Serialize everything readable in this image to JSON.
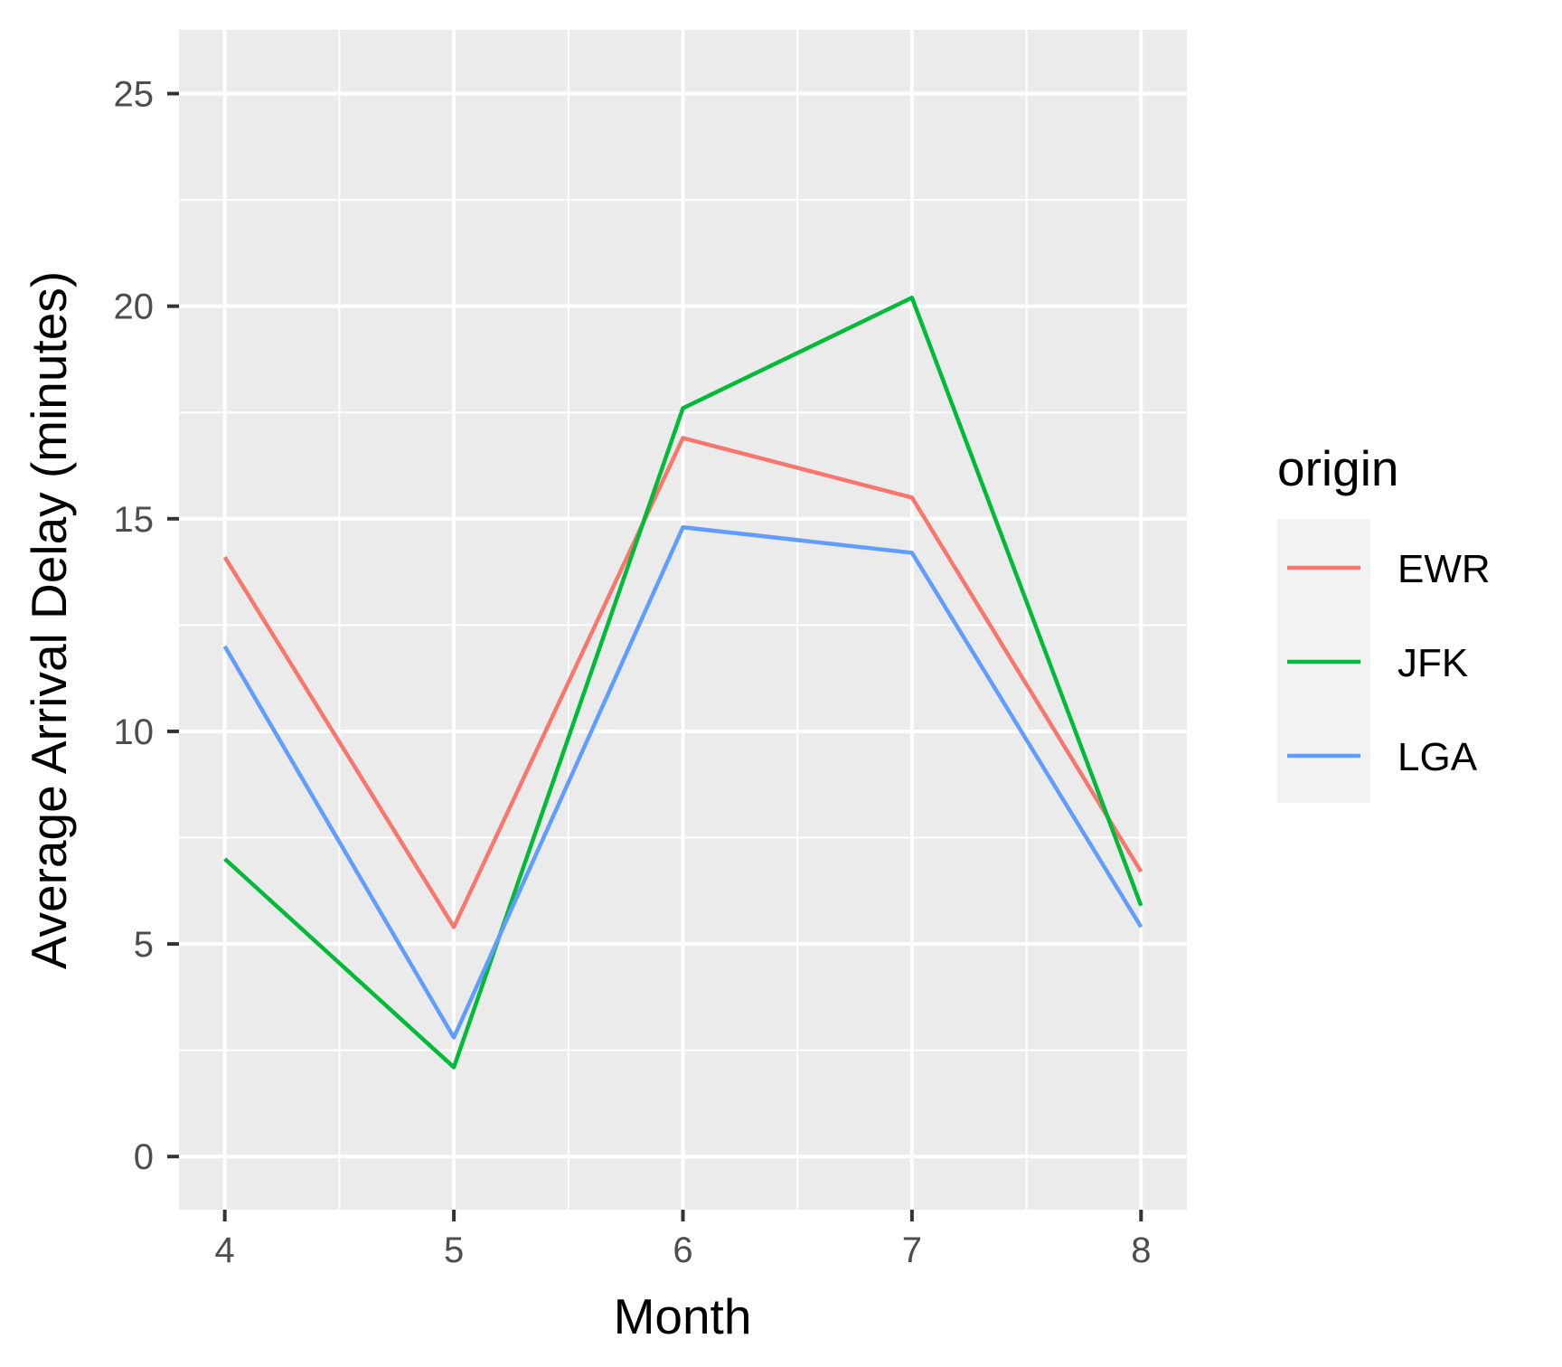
{
  "chart_data": {
    "type": "line",
    "title": "",
    "xlabel": "Month",
    "ylabel": "Average Arrival Delay (minutes)",
    "x": [
      4,
      5,
      6,
      7,
      8
    ],
    "x_ticks": [
      "4",
      "5",
      "6",
      "7",
      "8"
    ],
    "y_ticks": [
      "0",
      "5",
      "10",
      "15",
      "20",
      "25"
    ],
    "xlim": [
      3.8,
      8.2
    ],
    "ylim": [
      -1.25,
      26.5
    ],
    "grid": true,
    "legend": {
      "title": "origin",
      "position": "right"
    },
    "series": [
      {
        "name": "EWR",
        "color": "#F8766D",
        "values": [
          14.1,
          5.4,
          16.9,
          15.5,
          6.7
        ]
      },
      {
        "name": "JFK",
        "color": "#00BA38",
        "values": [
          7.0,
          2.1,
          17.6,
          20.2,
          5.9
        ]
      },
      {
        "name": "LGA",
        "color": "#619CFF",
        "values": [
          12.0,
          2.8,
          14.8,
          14.2,
          5.4
        ]
      }
    ]
  }
}
